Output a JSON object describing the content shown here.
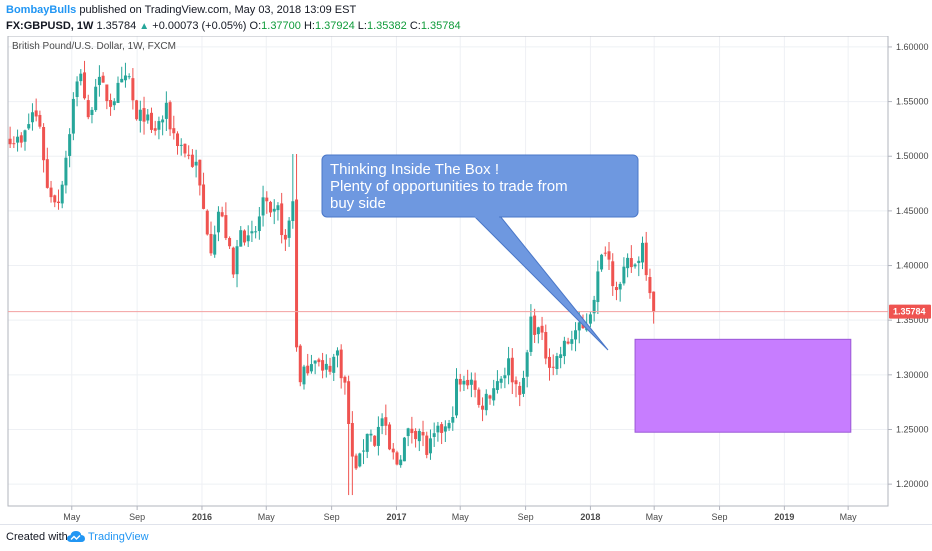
{
  "header": {
    "author": "BombayBulls",
    "published_text": "published on TradingView.com, May 03, 2018 13:09 EST",
    "symbol": "FX:GBPUSD, 1W",
    "last": "1.35784",
    "change": "+0.00073 (+0.05%)",
    "o_label": "O:",
    "o_value": "1.37700",
    "h_label": "H:",
    "h_value": "1.37924",
    "l_label": "L:",
    "l_value": "1.35382",
    "c_label": "C:",
    "c_value": "1.35784"
  },
  "footer": {
    "created_with": "Created with",
    "brand": "TradingView"
  },
  "colors": {
    "up": "#26a69a",
    "down": "#ef5350",
    "box": "#c77dff",
    "callout": "#6e98e0",
    "price_line": "#ef5350"
  },
  "chart_data": {
    "type": "candlestick",
    "title": "British Pound/U.S. Dollar, 1W, FXCM",
    "ylim": [
      1.18,
      1.61
    ],
    "y_ticks": [
      "1.20000",
      "1.25000",
      "1.30000",
      "1.35000",
      "1.40000",
      "1.45000",
      "1.50000",
      "1.55000",
      "1.60000"
    ],
    "x_ticks": [
      {
        "label": "May",
        "date": "2015-05-01",
        "bold": false
      },
      {
        "label": "Sep",
        "date": "2015-09-01",
        "bold": false
      },
      {
        "label": "2016",
        "date": "2016-01-01",
        "bold": true
      },
      {
        "label": "May",
        "date": "2016-05-01",
        "bold": false
      },
      {
        "label": "Sep",
        "date": "2016-09-01",
        "bold": false
      },
      {
        "label": "2017",
        "date": "2017-01-01",
        "bold": true
      },
      {
        "label": "May",
        "date": "2017-05-01",
        "bold": false
      },
      {
        "label": "Sep",
        "date": "2017-09-01",
        "bold": false
      },
      {
        "label": "2018",
        "date": "2018-01-01",
        "bold": true
      },
      {
        "label": "May",
        "date": "2018-05-01",
        "bold": false
      },
      {
        "label": "Sep",
        "date": "2018-09-01",
        "bold": false
      },
      {
        "label": "2019",
        "date": "2019-01-01",
        "bold": true
      },
      {
        "label": "May",
        "date": "2019-05-01",
        "bold": false
      }
    ],
    "x_range": [
      "2015-01-01",
      "2019-07-15"
    ],
    "current_price": "1.35784",
    "price_path": [
      [
        "2015-01-05",
        1.52
      ],
      [
        "2015-01-26",
        1.51
      ],
      [
        "2015-02-16",
        1.54
      ],
      [
        "2015-03-02",
        1.53
      ],
      [
        "2015-03-16",
        1.47
      ],
      [
        "2015-04-06",
        1.46
      ],
      [
        "2015-04-20",
        1.5
      ],
      [
        "2015-05-04",
        1.55
      ],
      [
        "2015-05-18",
        1.58
      ],
      [
        "2015-06-01",
        1.53
      ],
      [
        "2015-06-15",
        1.57
      ],
      [
        "2015-06-29",
        1.56
      ],
      [
        "2015-07-13",
        1.55
      ],
      [
        "2015-07-27",
        1.56
      ],
      [
        "2015-08-17",
        1.57
      ],
      [
        "2015-08-31",
        1.53
      ],
      [
        "2015-09-14",
        1.54
      ],
      [
        "2015-09-28",
        1.52
      ],
      [
        "2015-10-12",
        1.53
      ],
      [
        "2015-10-26",
        1.54
      ],
      [
        "2015-11-09",
        1.52
      ],
      [
        "2015-11-23",
        1.51
      ],
      [
        "2015-12-07",
        1.5
      ],
      [
        "2015-12-21",
        1.49
      ],
      [
        "2016-01-04",
        1.45
      ],
      [
        "2016-01-18",
        1.42
      ],
      [
        "2016-02-01",
        1.45
      ],
      [
        "2016-02-15",
        1.43
      ],
      [
        "2016-02-29",
        1.39
      ],
      [
        "2016-03-14",
        1.44
      ],
      [
        "2016-03-28",
        1.42
      ],
      [
        "2016-04-11",
        1.43
      ],
      [
        "2016-04-25",
        1.46
      ],
      [
        "2016-05-09",
        1.44
      ],
      [
        "2016-05-23",
        1.45
      ],
      [
        "2016-06-06",
        1.42
      ],
      [
        "2016-06-20",
        1.46
      ],
      [
        "2016-06-27",
        1.33
      ],
      [
        "2016-07-04",
        1.29
      ],
      [
        "2016-07-18",
        1.31
      ],
      [
        "2016-08-01",
        1.32
      ],
      [
        "2016-08-15",
        1.3
      ],
      [
        "2016-08-29",
        1.31
      ],
      [
        "2016-09-12",
        1.32
      ],
      [
        "2016-09-26",
        1.29
      ],
      [
        "2016-10-10",
        1.22
      ],
      [
        "2016-10-24",
        1.22
      ],
      [
        "2016-11-07",
        1.25
      ],
      [
        "2016-11-21",
        1.24
      ],
      [
        "2016-12-05",
        1.26
      ],
      [
        "2016-12-19",
        1.23
      ],
      [
        "2017-01-02",
        1.22
      ],
      [
        "2017-01-16",
        1.24
      ],
      [
        "2017-01-30",
        1.25
      ],
      [
        "2017-02-13",
        1.25
      ],
      [
        "2017-02-27",
        1.23
      ],
      [
        "2017-03-13",
        1.24
      ],
      [
        "2017-03-27",
        1.25
      ],
      [
        "2017-04-10",
        1.25
      ],
      [
        "2017-04-24",
        1.29
      ],
      [
        "2017-05-08",
        1.29
      ],
      [
        "2017-05-22",
        1.3
      ],
      [
        "2017-06-05",
        1.27
      ],
      [
        "2017-06-19",
        1.28
      ],
      [
        "2017-07-03",
        1.29
      ],
      [
        "2017-07-17",
        1.3
      ],
      [
        "2017-07-31",
        1.31
      ],
      [
        "2017-08-14",
        1.29
      ],
      [
        "2017-08-28",
        1.29
      ],
      [
        "2017-09-11",
        1.35
      ],
      [
        "2017-09-25",
        1.34
      ],
      [
        "2017-10-09",
        1.32
      ],
      [
        "2017-10-23",
        1.31
      ],
      [
        "2017-11-06",
        1.32
      ],
      [
        "2017-11-20",
        1.33
      ],
      [
        "2017-12-04",
        1.34
      ],
      [
        "2017-12-18",
        1.34
      ],
      [
        "2018-01-01",
        1.36
      ],
      [
        "2018-01-15",
        1.39
      ],
      [
        "2018-01-29",
        1.42
      ],
      [
        "2018-02-12",
        1.39
      ],
      [
        "2018-02-26",
        1.38
      ],
      [
        "2018-03-12",
        1.4
      ],
      [
        "2018-03-26",
        1.4
      ],
      [
        "2018-04-09",
        1.42
      ],
      [
        "2018-04-16",
        1.4
      ],
      [
        "2018-04-23",
        1.38
      ],
      [
        "2018-04-30",
        1.3578
      ]
    ],
    "annotations": [
      {
        "type": "callout",
        "text_lines": [
          "Thinking Inside The Box !",
          "Plenty of opportunities to trade from",
          "buy side"
        ]
      },
      {
        "type": "rectangle",
        "x": [
          "2018-03-26",
          "2019-05-06"
        ],
        "y": [
          1.2475,
          1.3325
        ]
      }
    ]
  }
}
